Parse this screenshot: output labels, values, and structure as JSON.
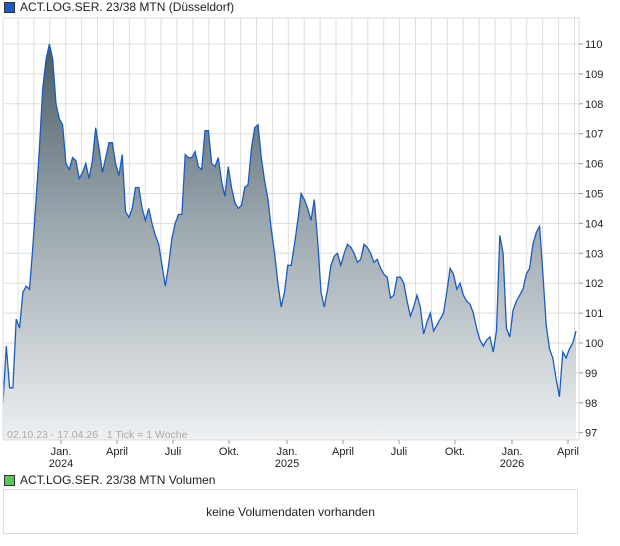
{
  "legend": {
    "price": "ACT.LOG.SER. 23/38 MTN (Düsseldorf)",
    "volume": "ACT.LOG.SER. 23/38 MTN Volumen"
  },
  "colors": {
    "price": "#1a5bc4",
    "volume": "#5cc65c"
  },
  "volume_message": "keine Volumendaten vorhanden",
  "chart_data": {
    "type": "area",
    "title": "ACT.LOG.SER. 23/38 MTN (Düsseldorf)",
    "range_label": "02.10.23 - 17.04.26   1 Tick = 1 Woche",
    "ylim": [
      96.7,
      110.9
    ],
    "yticks": [
      "97",
      "98",
      "99",
      "100",
      "101",
      "102",
      "103",
      "104",
      "105",
      "106",
      "107",
      "108",
      "109",
      "110"
    ],
    "xticks": [
      {
        "label": "Jan.",
        "sub": "2024"
      },
      {
        "label": "April",
        "sub": ""
      },
      {
        "label": "Juli",
        "sub": ""
      },
      {
        "label": "Okt.",
        "sub": ""
      },
      {
        "label": "Jan.",
        "sub": "2025"
      },
      {
        "label": "April",
        "sub": ""
      },
      {
        "label": "Juli",
        "sub": ""
      },
      {
        "label": "Okt.",
        "sub": ""
      },
      {
        "label": "Jan.",
        "sub": "2026"
      },
      {
        "label": "April",
        "sub": ""
      }
    ],
    "values": [
      98.0,
      99.9,
      98.5,
      98.5,
      100.8,
      100.5,
      101.7,
      101.9,
      101.8,
      103.2,
      104.8,
      106.5,
      108.5,
      109.5,
      110.0,
      109.5,
      108.0,
      107.5,
      107.3,
      106.0,
      105.8,
      106.2,
      106.1,
      105.5,
      105.7,
      106.0,
      105.5,
      106.1,
      107.2,
      106.5,
      105.7,
      106.2,
      106.7,
      106.7,
      106.0,
      105.6,
      106.3,
      104.4,
      104.2,
      104.5,
      105.2,
      105.2,
      104.5,
      104.1,
      104.5,
      104.0,
      103.6,
      103.3,
      102.6,
      101.9,
      102.6,
      103.5,
      104.0,
      104.3,
      104.3,
      106.3,
      106.2,
      106.2,
      106.4,
      105.9,
      105.8,
      107.1,
      107.1,
      106.0,
      105.9,
      106.2,
      105.4,
      104.9,
      105.9,
      105.2,
      104.7,
      104.5,
      104.6,
      105.2,
      105.3,
      106.5,
      107.2,
      107.3,
      106.2,
      105.4,
      104.8,
      103.8,
      103.0,
      102.0,
      101.2,
      101.7,
      102.6,
      102.6,
      103.3,
      104.1,
      105.0,
      104.8,
      104.5,
      104.1,
      104.8,
      103.4,
      101.7,
      101.2,
      101.8,
      102.6,
      102.9,
      103.0,
      102.6,
      103.0,
      103.3,
      103.2,
      103.0,
      102.7,
      102.8,
      103.3,
      103.2,
      103.0,
      102.7,
      102.8,
      102.5,
      102.3,
      102.2,
      101.5,
      101.6,
      102.2,
      102.2,
      102.0,
      101.4,
      100.9,
      101.2,
      101.6,
      101.2,
      100.3,
      100.7,
      101.0,
      100.4,
      100.6,
      100.8,
      101.0,
      101.7,
      102.5,
      102.3,
      101.8,
      102.0,
      101.6,
      101.4,
      101.3,
      101.0,
      100.5,
      100.1,
      99.9,
      100.1,
      100.2,
      99.7,
      100.4,
      103.6,
      103.0,
      100.5,
      100.2,
      101.1,
      101.4,
      101.6,
      101.8,
      102.3,
      102.5,
      103.3,
      103.7,
      103.9,
      102.3,
      100.6,
      99.8,
      99.5,
      98.8,
      98.2,
      99.7,
      99.5,
      99.8,
      100.0,
      100.4
    ]
  }
}
